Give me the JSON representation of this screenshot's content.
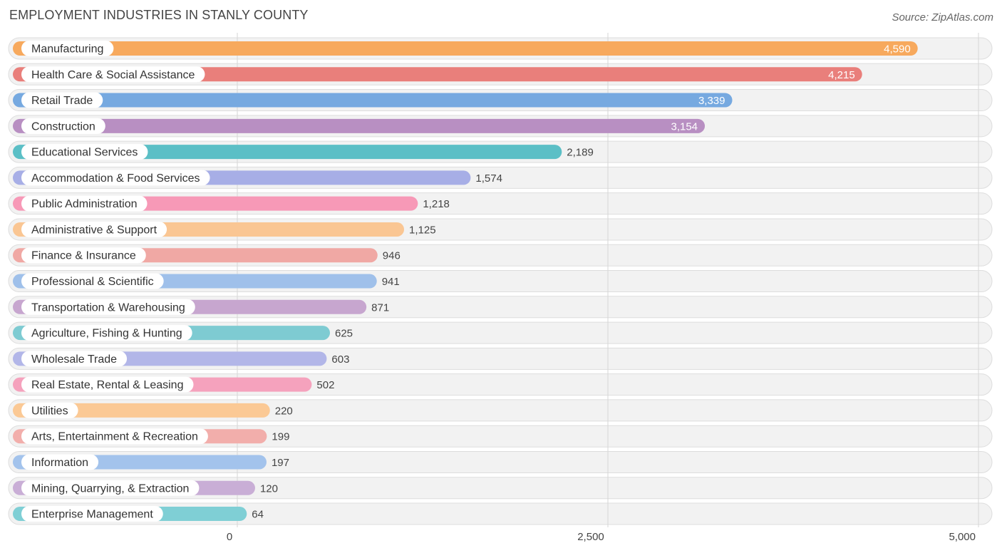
{
  "chart_data": {
    "type": "bar",
    "orientation": "horizontal",
    "title": "EMPLOYMENT INDUSTRIES IN STANLY COUNTY",
    "source": "Source: ZipAtlas.com",
    "xlabel": "",
    "ylabel": "",
    "xlim": [
      0,
      5000
    ],
    "ticks": [
      {
        "value": 0,
        "label": "0"
      },
      {
        "value": 2500,
        "label": "2,500"
      },
      {
        "value": 5000,
        "label": "5,000"
      }
    ],
    "categories": [
      "Manufacturing",
      "Health Care & Social Assistance",
      "Retail Trade",
      "Construction",
      "Educational Services",
      "Accommodation & Food Services",
      "Public Administration",
      "Administrative & Support",
      "Finance & Insurance",
      "Professional & Scientific",
      "Transportation & Warehousing",
      "Agriculture, Fishing & Hunting",
      "Wholesale Trade",
      "Real Estate, Rental & Leasing",
      "Utilities",
      "Arts, Entertainment & Recreation",
      "Information",
      "Mining, Quarrying, & Extraction",
      "Enterprise Management"
    ],
    "values": [
      4590,
      4215,
      3339,
      3154,
      2189,
      1574,
      1218,
      1125,
      946,
      941,
      871,
      625,
      603,
      502,
      220,
      199,
      197,
      120,
      64
    ],
    "value_labels": [
      "4,590",
      "4,215",
      "3,339",
      "3,154",
      "2,189",
      "1,574",
      "1,218",
      "1,125",
      "946",
      "941",
      "871",
      "625",
      "603",
      "502",
      "220",
      "199",
      "197",
      "120",
      "64"
    ],
    "colors": [
      "#f7a95d",
      "#e97f7b",
      "#76a9e0",
      "#b88fc2",
      "#5bbfc6",
      "#a7aee6",
      "#f799b7",
      "#fac693",
      "#f0a8a4",
      "#9fc0ea",
      "#c7a6cf",
      "#7ecbd2",
      "#b2b6e8",
      "#f5a2bd",
      "#fbc995",
      "#f2aeab",
      "#a3c3ec",
      "#c9aed6",
      "#7fcfd5"
    ],
    "grid": true,
    "legend": "none"
  }
}
